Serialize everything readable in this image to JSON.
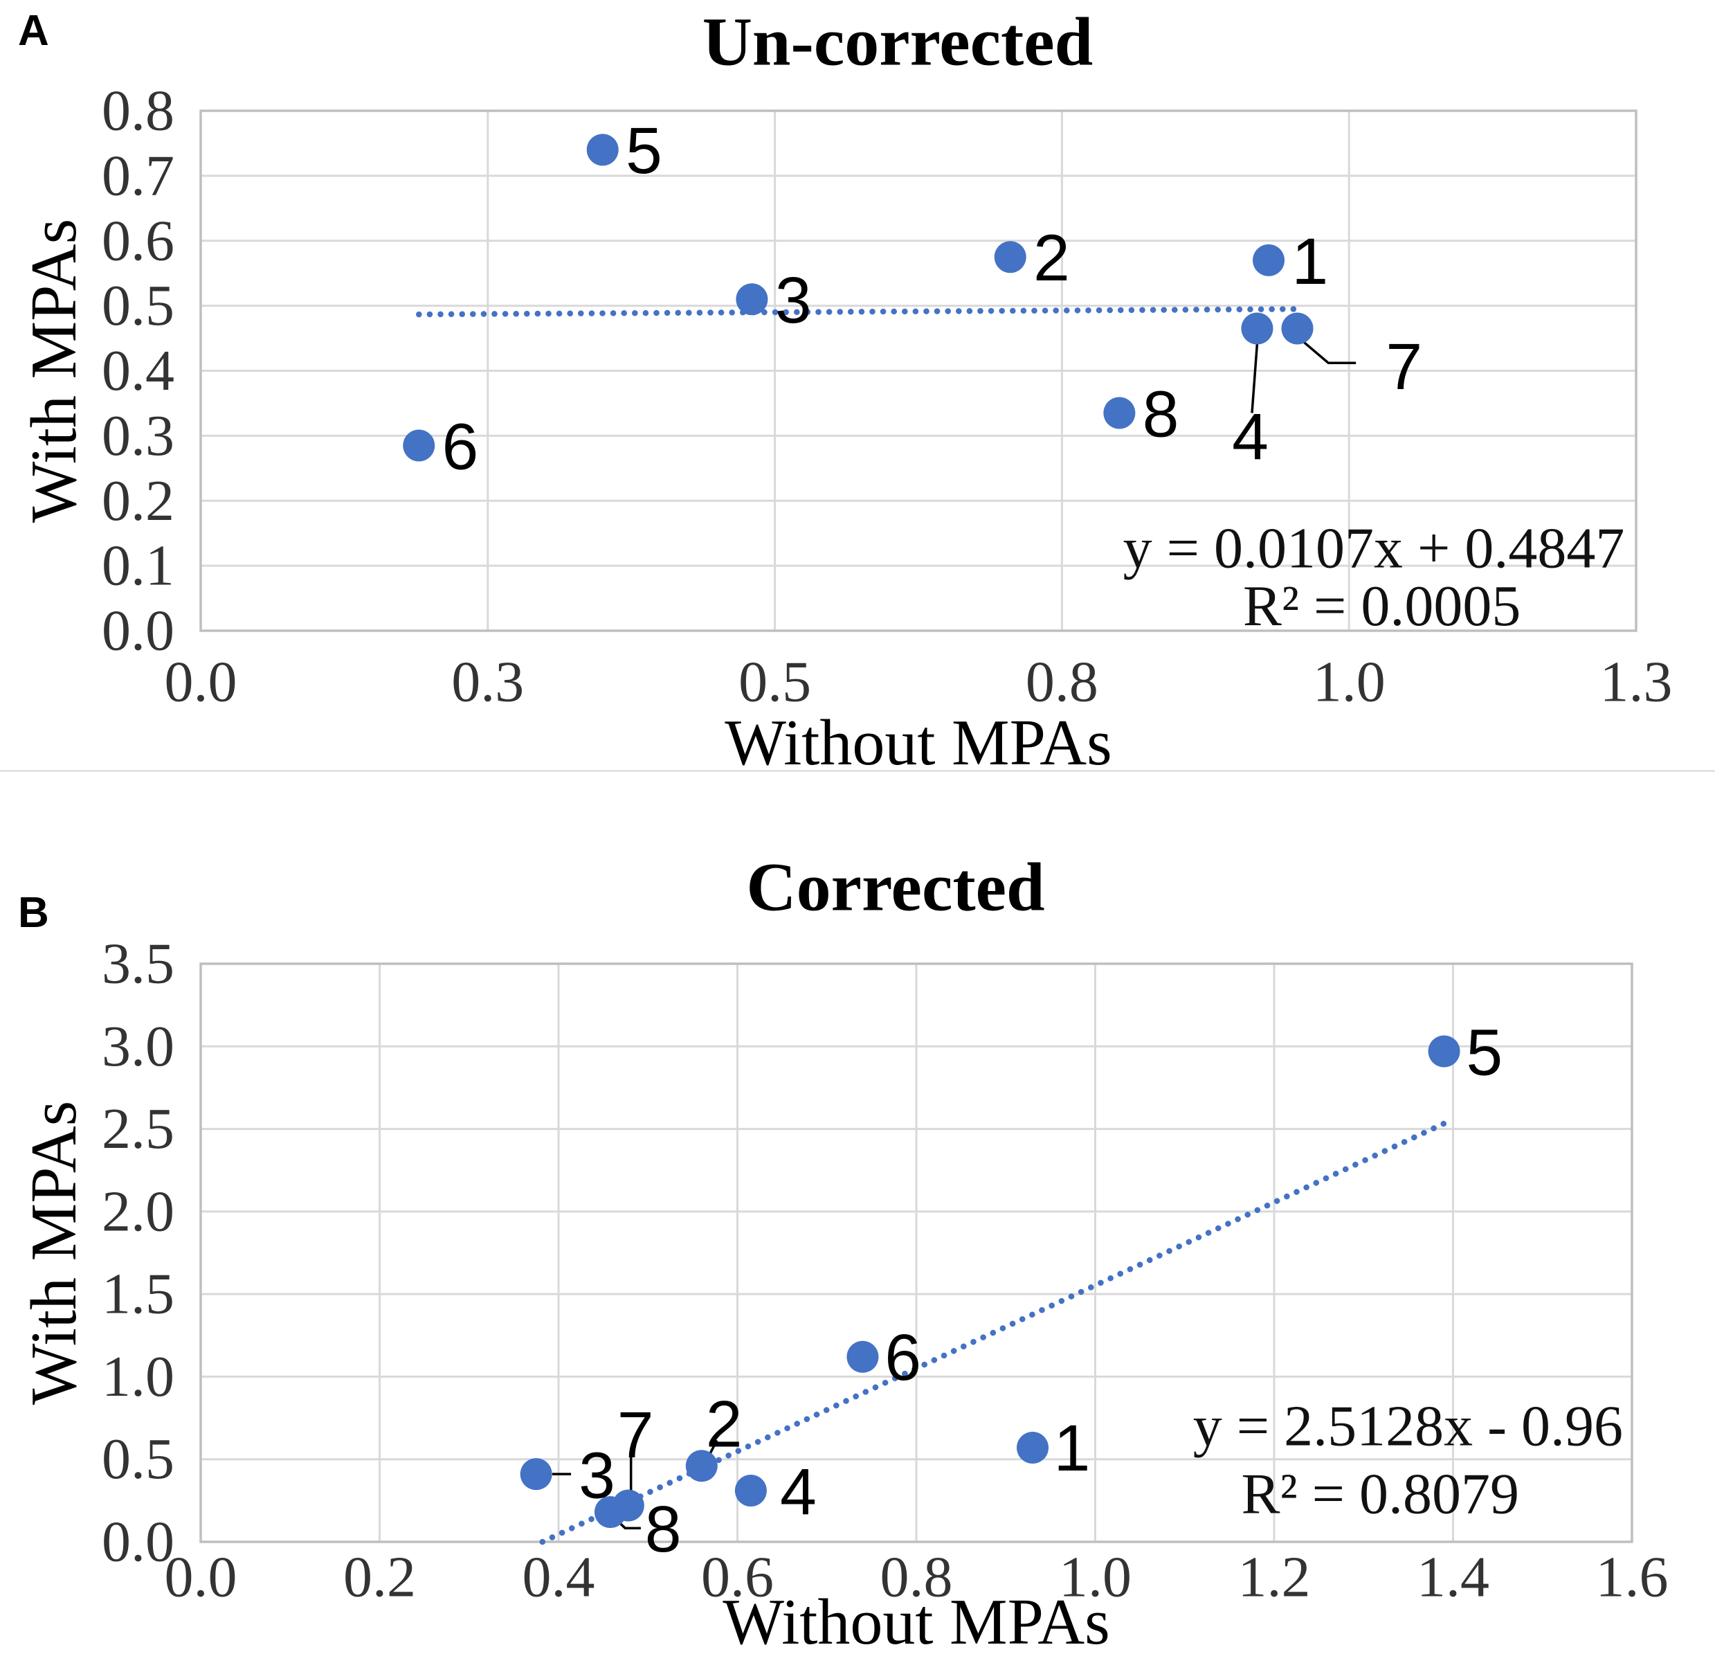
{
  "style": {
    "accent": "#4472C4",
    "grid_color": "#D9D9D9",
    "frame_color": "#BFBFBF",
    "tick_color": "#333333",
    "text_color": "#000000",
    "divider_color": "#E3E3E3",
    "background": "#FFFFFF"
  },
  "chart_data": [
    {
      "panel_letter": "A",
      "type": "scatter",
      "title": "Un-corrected",
      "xlabel": "Without MPAs",
      "ylabel": "With MPAs",
      "xlim": [
        0,
        1.25
      ],
      "ylim": [
        0,
        0.8
      ],
      "grid": true,
      "legend": "none",
      "xtick_labels": [
        "0.0",
        "0.3",
        "0.5",
        "0.8",
        "1.0",
        "1.3"
      ],
      "ytick_labels": [
        "0.0",
        "0.1",
        "0.2",
        "0.3",
        "0.4",
        "0.5",
        "0.6",
        "0.7",
        "0.8"
      ],
      "points": [
        {
          "label": "1",
          "x": 0.93,
          "y": 0.57,
          "label_at": [
            0.966,
            0.568
          ]
        },
        {
          "label": "2",
          "x": 0.705,
          "y": 0.575,
          "label_at": [
            0.741,
            0.573
          ]
        },
        {
          "label": "3",
          "x": 0.48,
          "y": 0.51,
          "label_at": [
            0.516,
            0.508
          ]
        },
        {
          "label": "4",
          "x": 0.92,
          "y": 0.465,
          "label_at": [
            0.914,
            0.298
          ],
          "leader": [
            [
              0.92,
              0.442
            ],
            [
              0.9155,
              0.335
            ]
          ]
        },
        {
          "label": "5",
          "x": 0.35,
          "y": 0.74,
          "label_at": [
            0.386,
            0.738
          ]
        },
        {
          "label": "6",
          "x": 0.19,
          "y": 0.285,
          "label_at": [
            0.226,
            0.283
          ]
        },
        {
          "label": "7",
          "x": 0.955,
          "y": 0.465,
          "label_at": [
            1.048,
            0.406
          ],
          "leader": [
            [
              0.958,
              0.448
            ],
            [
              0.982,
              0.412
            ],
            [
              1.006,
              0.412
            ]
          ]
        },
        {
          "label": "8",
          "x": 0.8,
          "y": 0.335,
          "label_at": [
            0.836,
            0.333
          ]
        }
      ],
      "trendline": {
        "slope": 0.0107,
        "intercept": 0.4847,
        "x_start": 0.19,
        "x_end": 0.955
      },
      "equation": {
        "line1": "y = 0.0107x + 0.4847",
        "line2": "R² = 0.0005",
        "anchor_x": 1.24,
        "line1_y": 0.127,
        "line2_y": 0.038
      }
    },
    {
      "panel_letter": "B",
      "type": "scatter",
      "title": "Corrected",
      "xlabel": "Without MPAs",
      "ylabel": "With MPAs",
      "xlim": [
        0,
        1.6
      ],
      "ylim": [
        0,
        3.5
      ],
      "grid": true,
      "legend": "none",
      "xtick_labels": [
        "0.0",
        "0.2",
        "0.4",
        "0.6",
        "0.8",
        "1.0",
        "1.2",
        "1.4",
        "1.6"
      ],
      "ytick_labels": [
        "0.0",
        "0.5",
        "1.0",
        "1.5",
        "2.0",
        "2.5",
        "3.0",
        "3.5"
      ],
      "points": [
        {
          "label": "1",
          "x": 0.93,
          "y": 0.57,
          "label_at": [
            0.974,
            0.565
          ]
        },
        {
          "label": "2",
          "x": 0.56,
          "y": 0.46,
          "label_at": [
            0.585,
            0.71
          ],
          "leader": [
            [
              0.566,
              0.497
            ],
            [
              0.577,
              0.615
            ]
          ]
        },
        {
          "label": "3",
          "x": 0.375,
          "y": 0.41,
          "label_at": [
            0.443,
            0.4
          ],
          "leader": [
            [
              0.393,
              0.41
            ],
            [
              0.414,
              0.41
            ]
          ]
        },
        {
          "label": "4",
          "x": 0.615,
          "y": 0.31,
          "label_at": [
            0.668,
            0.3
          ]
        },
        {
          "label": "5",
          "x": 1.39,
          "y": 2.97,
          "label_at": [
            1.435,
            2.962
          ]
        },
        {
          "label": "6",
          "x": 0.74,
          "y": 1.12,
          "label_at": [
            0.785,
            1.114
          ]
        },
        {
          "label": "7",
          "x": 0.478,
          "y": 0.22,
          "label_at": [
            0.486,
            0.645
          ],
          "leader": [
            [
              0.481,
              0.53
            ],
            [
              0.481,
              0.295
            ]
          ]
        },
        {
          "label": "8",
          "x": 0.458,
          "y": 0.18,
          "label_at": [
            0.517,
            0.075
          ],
          "leader": [
            [
              0.463,
              0.142
            ],
            [
              0.4745,
              0.083
            ],
            [
              0.492,
              0.083
            ]
          ]
        }
      ],
      "trendline": {
        "slope": 2.5128,
        "intercept": -0.96,
        "x_start": 0.382,
        "x_end": 1.39
      },
      "equation": {
        "line1": "y = 2.5128x - 0.96",
        "line2": "R² = 0.8079",
        "anchor_x": 1.59,
        "line1_y": 0.7,
        "line2_y": 0.29
      }
    }
  ]
}
